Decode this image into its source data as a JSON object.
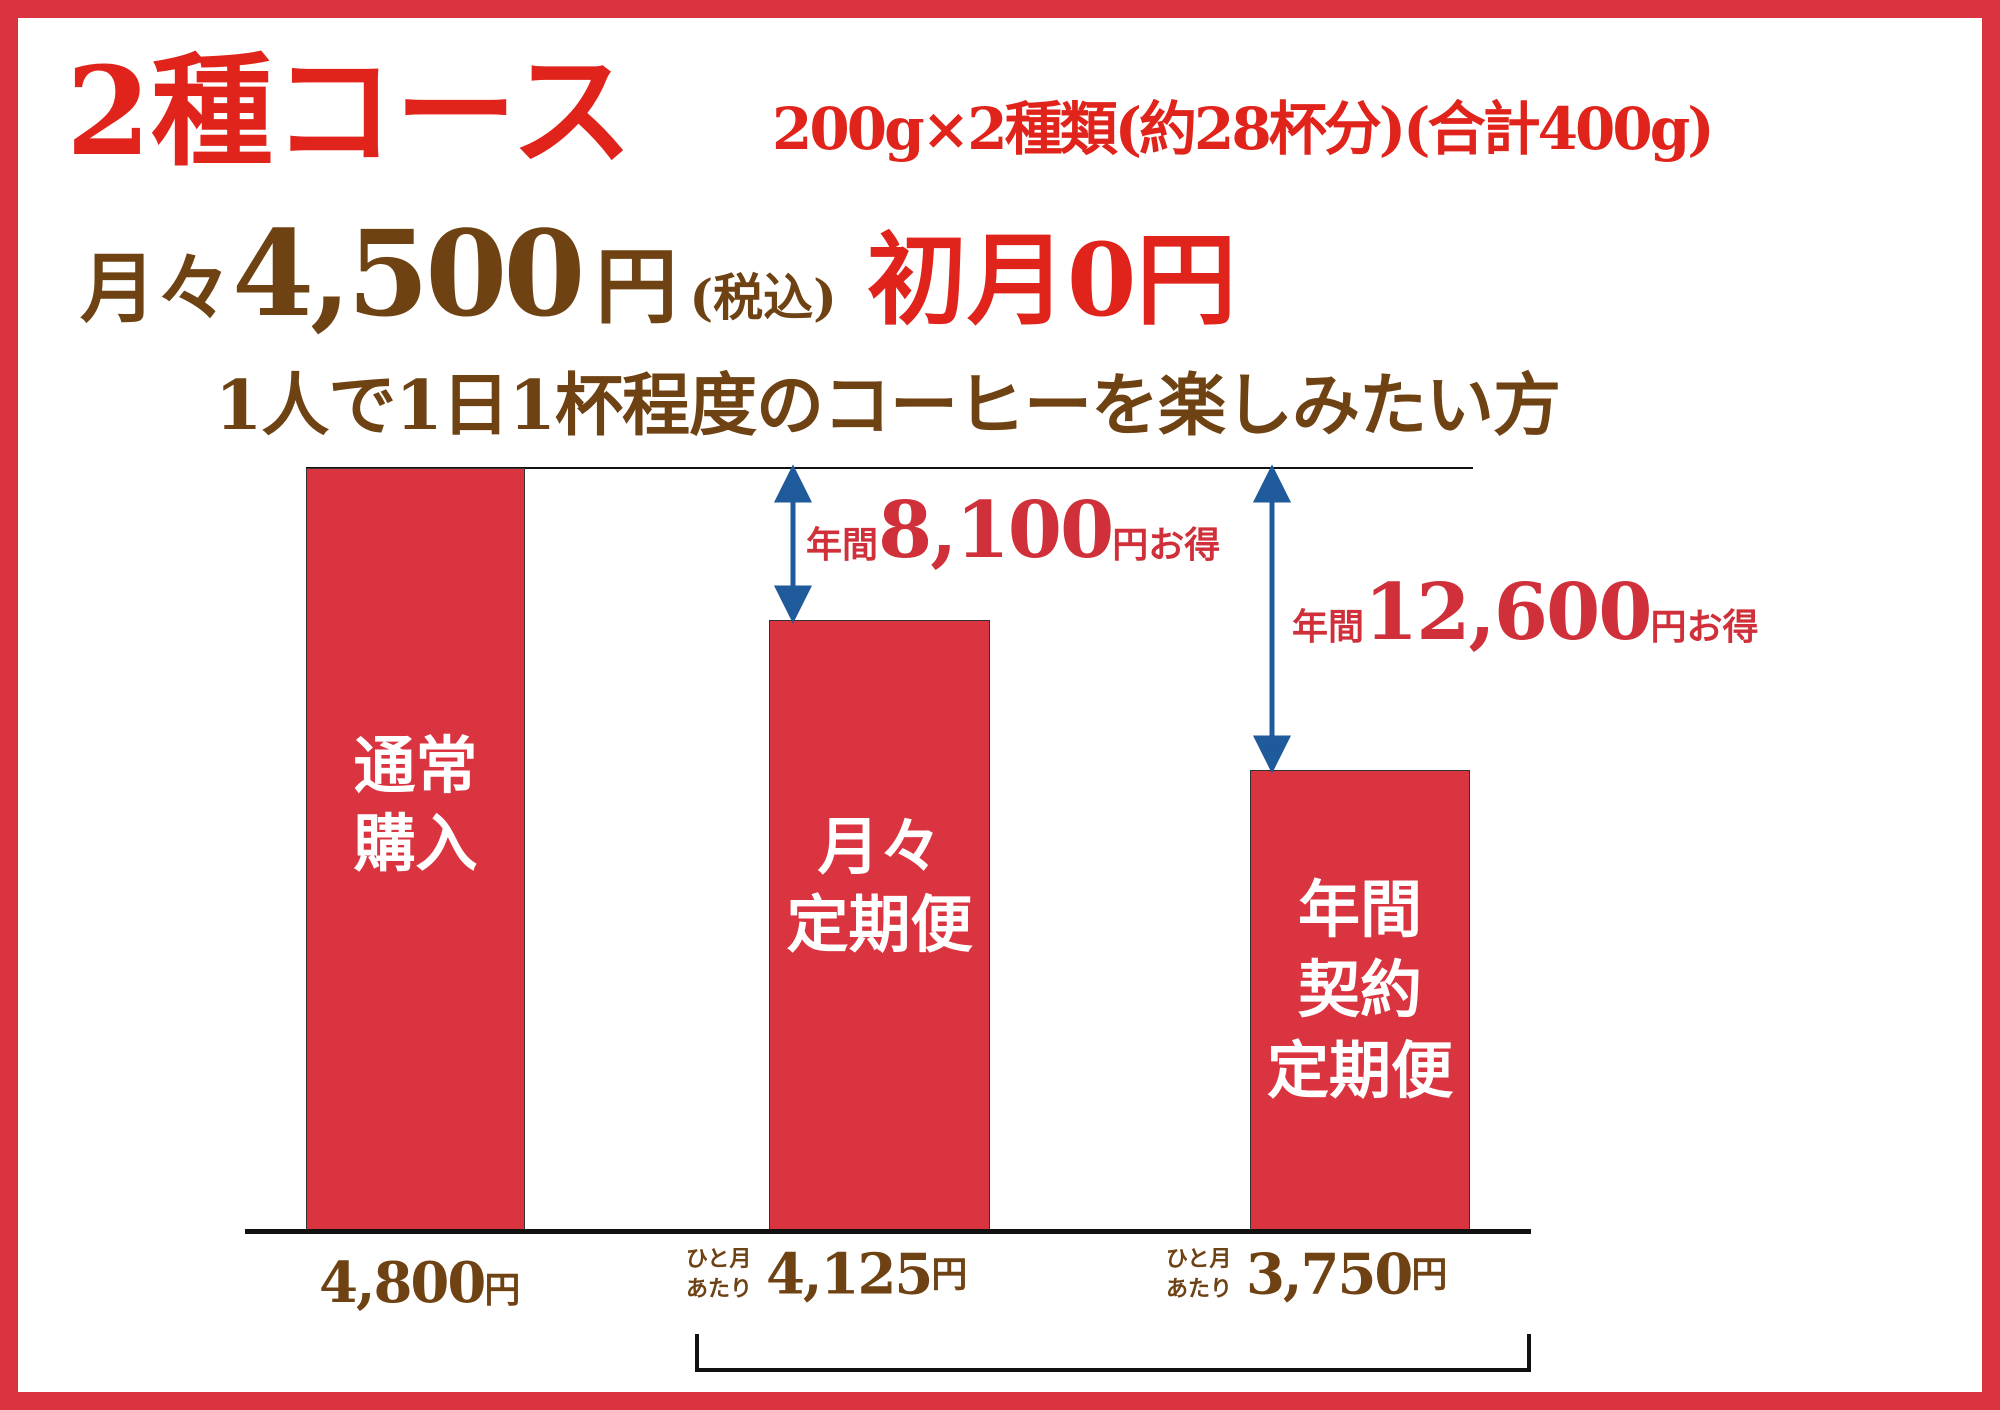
{
  "title": "2種コース",
  "subtitle": "200g×2種類(約28杯分)(合計400g)",
  "price": {
    "prefix": "月々",
    "amount": "4,500",
    "yen": "円",
    "tax": "(税込)",
    "first_month": "初月0円"
  },
  "tagline": "1人で1日1杯程度のコーヒーを楽しみたい方",
  "colors": {
    "bar": "#d9343f",
    "title": "#e0241c",
    "text": "#6e4212",
    "arrow": "#1f5a9a"
  },
  "bars": [
    {
      "label_lines": [
        "通常",
        "購入"
      ],
      "value": 4800,
      "price": "4,800",
      "yen": "円",
      "per_month": null
    },
    {
      "label_lines": [
        "月々",
        "定期便"
      ],
      "value": 4125,
      "price": "4,125",
      "yen": "円",
      "per_month": [
        "ひと月",
        "あたり"
      ]
    },
    {
      "label_lines": [
        "年間",
        "契約",
        "定期便"
      ],
      "value": 3750,
      "price": "3,750",
      "yen": "円",
      "per_month": [
        "ひと月",
        "あたり"
      ]
    }
  ],
  "savings": [
    {
      "prefix": "年間",
      "amount": "8,100",
      "suffix": "円お得"
    },
    {
      "prefix": "年間",
      "amount": "12,600",
      "suffix": "円お得"
    }
  ]
}
